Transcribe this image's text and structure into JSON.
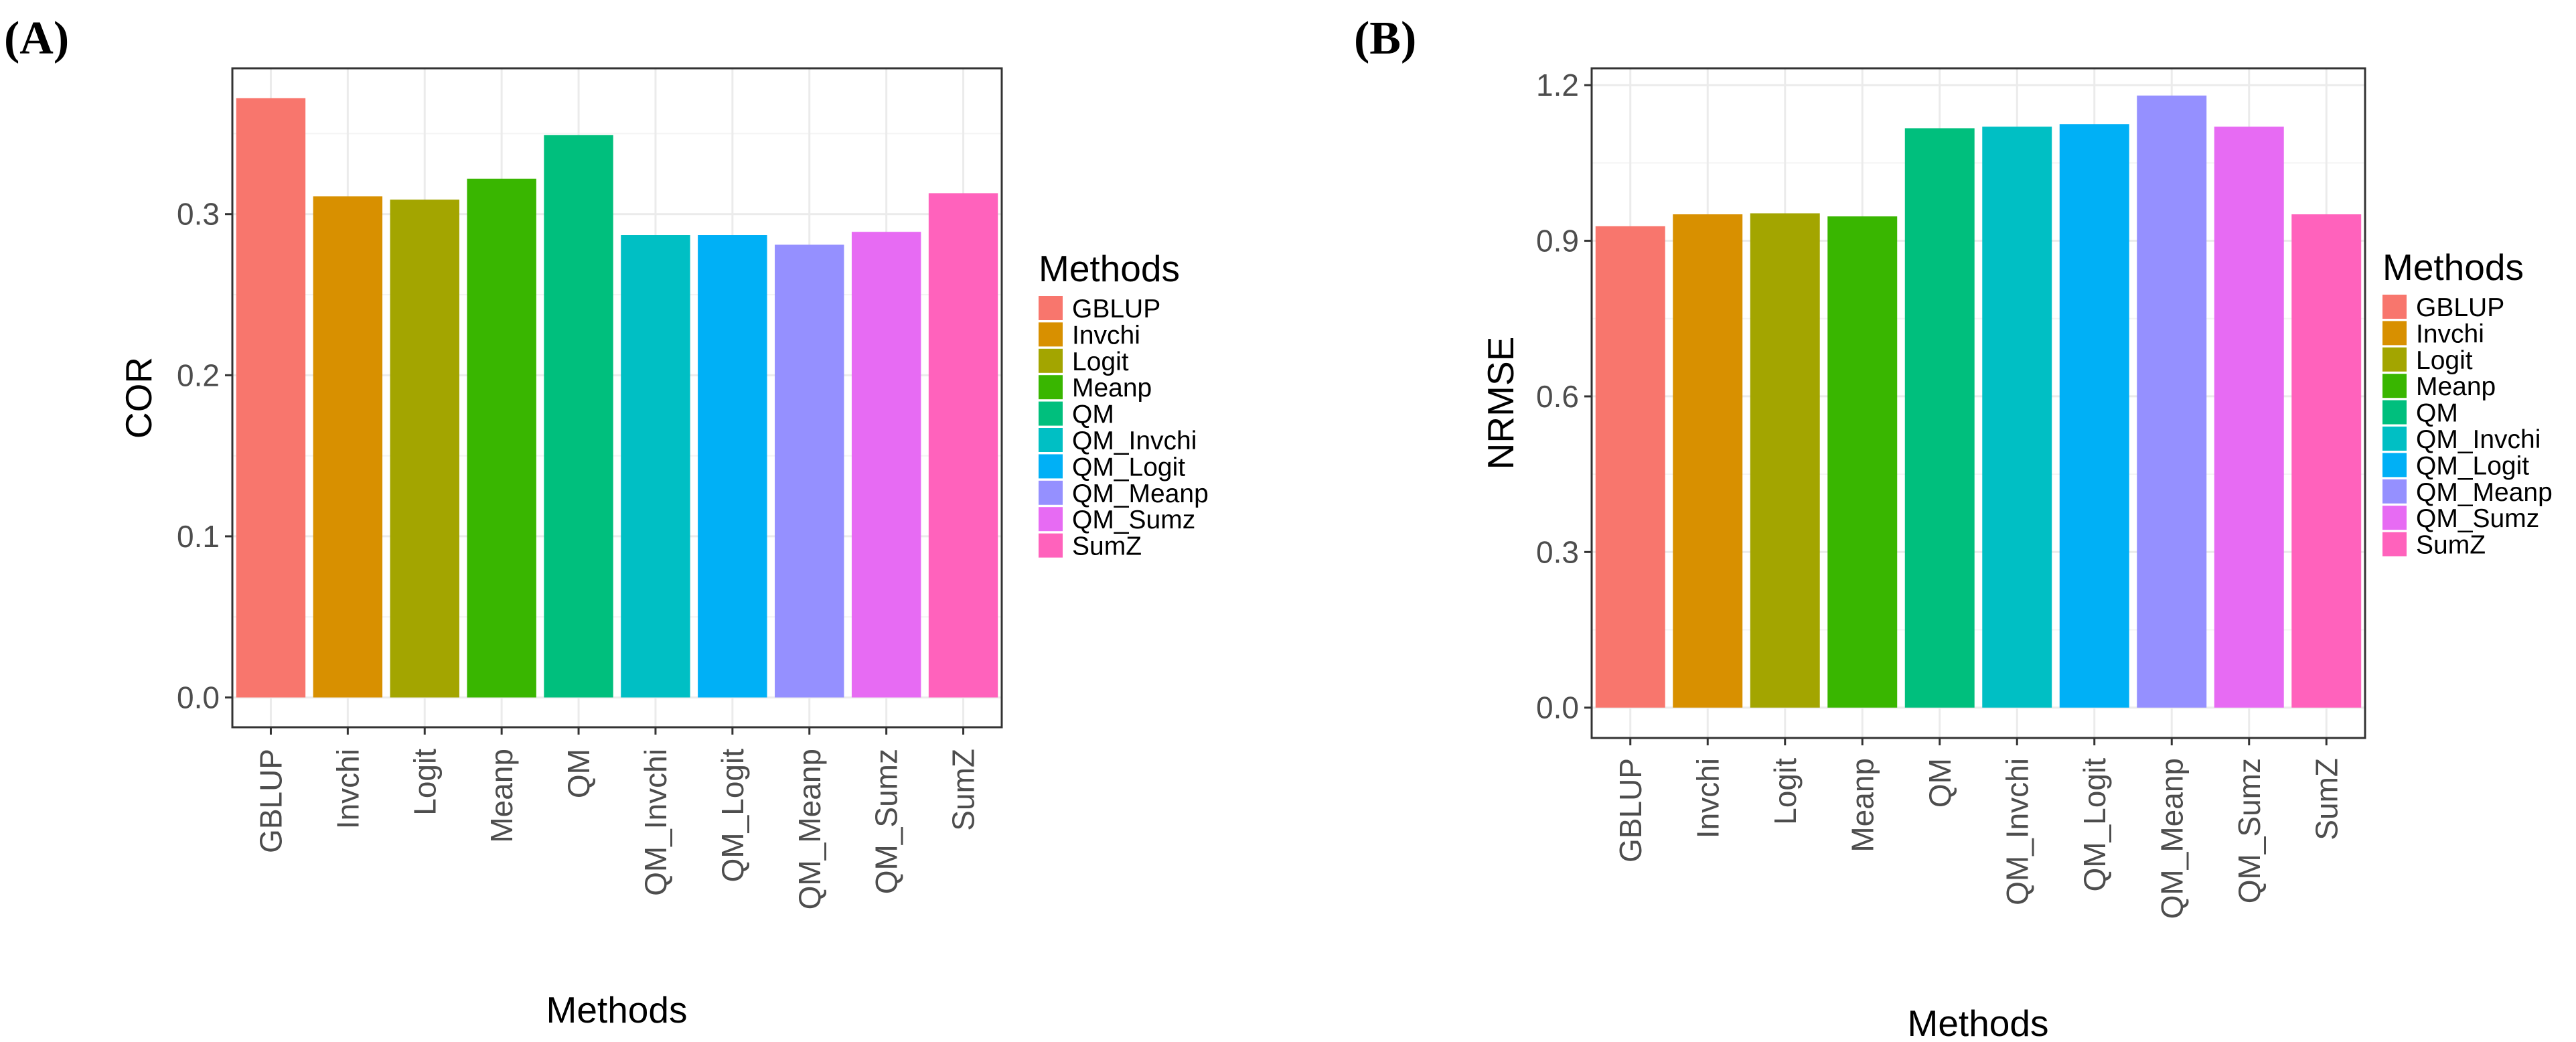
{
  "chart_data": [
    {
      "panel_label": "(A)",
      "type": "bar",
      "categories": [
        "GBLUP",
        "Invchi",
        "Logit",
        "Meanp",
        "QM",
        "QM_Invchi",
        "QM_Logit",
        "QM_Meanp",
        "QM_Sumz",
        "SumZ"
      ],
      "values": [
        0.372,
        0.311,
        0.309,
        0.322,
        0.349,
        0.287,
        0.287,
        0.281,
        0.289,
        0.313
      ],
      "xlabel": "Methods",
      "ylabel": "COR",
      "ylim": [
        -0.0185,
        0.3905
      ],
      "yticks": [
        0.0,
        0.1,
        0.2,
        0.3
      ],
      "ytick_labels": [
        "0.0",
        "0.1",
        "0.2",
        "0.3"
      ],
      "grid": true,
      "legend": {
        "title": "Methods",
        "position": "right",
        "labels": [
          "GBLUP",
          "Invchi",
          "Logit",
          "Meanp",
          "QM",
          "QM_Invchi",
          "QM_Logit",
          "QM_Meanp",
          "QM_Sumz",
          "SumZ"
        ]
      }
    },
    {
      "panel_label": "(B)",
      "type": "bar",
      "categories": [
        "GBLUP",
        "Invchi",
        "Logit",
        "Meanp",
        "QM",
        "QM_Invchi",
        "QM_Logit",
        "QM_Meanp",
        "QM_Sumz",
        "SumZ"
      ],
      "values": [
        0.928,
        0.951,
        0.953,
        0.947,
        1.117,
        1.12,
        1.125,
        1.18,
        1.12,
        0.951
      ],
      "xlabel": "Methods",
      "ylabel": "NRMSE",
      "ylim": [
        -0.0585,
        1.2325
      ],
      "yticks": [
        0.0,
        0.3,
        0.6,
        0.9,
        1.2
      ],
      "ytick_labels": [
        "0.0",
        "0.3",
        "0.6",
        "0.9",
        "1.2"
      ],
      "grid": true,
      "legend": {
        "title": "Methods",
        "position": "right",
        "labels": [
          "GBLUP",
          "Invchi",
          "Logit",
          "Meanp",
          "QM",
          "QM_Invchi",
          "QM_Logit",
          "QM_Meanp",
          "QM_Sumz",
          "SumZ"
        ]
      }
    }
  ],
  "colors": {
    "GBLUP": "#f8766d",
    "Invchi": "#d89000",
    "Logit": "#a3a500",
    "Meanp": "#39b600",
    "QM": "#00bf7d",
    "QM_Invchi": "#00bfc4",
    "QM_Logit": "#00b0f6",
    "QM_Meanp": "#9590ff",
    "QM_Sumz": "#e76bf3",
    "SumZ": "#ff62bc"
  }
}
